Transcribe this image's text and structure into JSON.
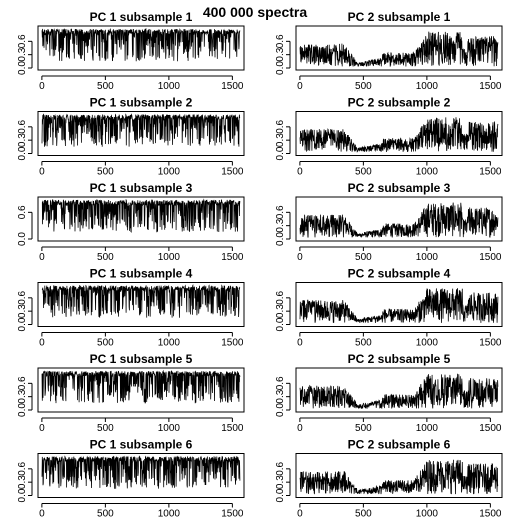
{
  "figure": {
    "title": "400 000 spectra"
  },
  "chart_data": [
    {
      "type": "line",
      "title": "PC 1 subsample 1",
      "xlim": [
        1,
        1560
      ],
      "ylim": [
        0,
        0.9
      ],
      "xticks": [
        0,
        500,
        1000,
        1500
      ],
      "yticks": [
        0.0,
        0.3,
        0.6
      ],
      "ytick_labels": [
        "0.0",
        "0.3",
        "0.6"
      ],
      "profile": "pc1",
      "seed": 11
    },
    {
      "type": "line",
      "title": "PC 2 subsample 1",
      "xlim": [
        1,
        1560
      ],
      "ylim": [
        0,
        0.9
      ],
      "xticks": [
        0,
        500,
        1000,
        1500
      ],
      "yticks": [
        0.0,
        0.3,
        0.6
      ],
      "ytick_labels": [
        "0.0",
        "0.3",
        "0.6"
      ],
      "profile": "pc2",
      "seed": 21
    },
    {
      "type": "line",
      "title": "PC 1 subsample 2",
      "xlim": [
        1,
        1560
      ],
      "ylim": [
        0,
        0.9
      ],
      "xticks": [
        0,
        500,
        1000,
        1500
      ],
      "yticks": [
        0.0,
        0.3,
        0.6
      ],
      "ytick_labels": [
        "0.0",
        "0.3",
        "0.6"
      ],
      "profile": "pc1",
      "seed": 12
    },
    {
      "type": "line",
      "title": "PC 2 subsample 2",
      "xlim": [
        1,
        1560
      ],
      "ylim": [
        0,
        0.9
      ],
      "xticks": [
        0,
        500,
        1000,
        1500
      ],
      "yticks": [
        0.0,
        0.3,
        0.6
      ],
      "ytick_labels": [
        "0.0",
        "0.3",
        "0.6"
      ],
      "profile": "pc2",
      "seed": 22
    },
    {
      "type": "line",
      "title": "PC 1 subsample 3",
      "xlim": [
        1,
        1560
      ],
      "ylim": [
        0,
        0.9
      ],
      "xticks": [
        0,
        500,
        1000,
        1500
      ],
      "yticks": [
        0.0,
        0.6
      ],
      "ytick_labels": [
        "0.0",
        "0.6"
      ],
      "profile": "pc1",
      "seed": 13
    },
    {
      "type": "line",
      "title": "PC 2 subsample 3",
      "xlim": [
        1,
        1560
      ],
      "ylim": [
        0,
        0.9
      ],
      "xticks": [
        0,
        500,
        1000,
        1500
      ],
      "yticks": [
        0.0,
        0.3,
        0.6
      ],
      "ytick_labels": [
        "0.0",
        "0.3",
        "0.6"
      ],
      "profile": "pc2",
      "seed": 23
    },
    {
      "type": "line",
      "title": "PC 1 subsample 4",
      "xlim": [
        1,
        1560
      ],
      "ylim": [
        0,
        0.9
      ],
      "xticks": [
        0,
        500,
        1000,
        1500
      ],
      "yticks": [
        0.0,
        0.3,
        0.6
      ],
      "ytick_labels": [
        "0.0",
        "0.3",
        "0.6"
      ],
      "profile": "pc1",
      "seed": 14
    },
    {
      "type": "line",
      "title": "PC 2 subsample 4",
      "xlim": [
        1,
        1560
      ],
      "ylim": [
        0,
        0.9
      ],
      "xticks": [
        0,
        500,
        1000,
        1500
      ],
      "yticks": [
        0.0,
        0.3,
        0.6
      ],
      "ytick_labels": [
        "0.0",
        "0.3",
        "0.6"
      ],
      "profile": "pc2",
      "seed": 24
    },
    {
      "type": "line",
      "title": "PC 1 subsample 5",
      "xlim": [
        1,
        1560
      ],
      "ylim": [
        0,
        0.9
      ],
      "xticks": [
        0,
        500,
        1000,
        1500
      ],
      "yticks": [
        0.0,
        0.3,
        0.6
      ],
      "ytick_labels": [
        "0.0",
        "0.3",
        "0.6"
      ],
      "profile": "pc1",
      "seed": 15
    },
    {
      "type": "line",
      "title": "PC 2 subsample 5",
      "xlim": [
        1,
        1560
      ],
      "ylim": [
        0,
        0.9
      ],
      "xticks": [
        0,
        500,
        1000,
        1500
      ],
      "yticks": [
        0.0,
        0.3,
        0.6
      ],
      "ytick_labels": [
        "0.0",
        "0.3",
        "0.6"
      ],
      "profile": "pc2",
      "seed": 25
    },
    {
      "type": "line",
      "title": "PC 1 subsample 6",
      "xlim": [
        1,
        1560
      ],
      "ylim": [
        0,
        0.9
      ],
      "xticks": [
        0,
        500,
        1000,
        1500
      ],
      "yticks": [
        0.0,
        0.3,
        0.6
      ],
      "ytick_labels": [
        "0.0",
        "0.3",
        "0.6"
      ],
      "profile": "pc1",
      "seed": 16
    },
    {
      "type": "line",
      "title": "PC 2 subsample 6",
      "xlim": [
        1,
        1560
      ],
      "ylim": [
        0,
        0.9
      ],
      "xticks": [
        0,
        500,
        1000,
        1500
      ],
      "yticks": [
        0.0,
        0.3,
        0.6
      ],
      "ytick_labels": [
        "0.0",
        "0.3",
        "0.6"
      ],
      "profile": "pc2",
      "seed": 26
    }
  ]
}
